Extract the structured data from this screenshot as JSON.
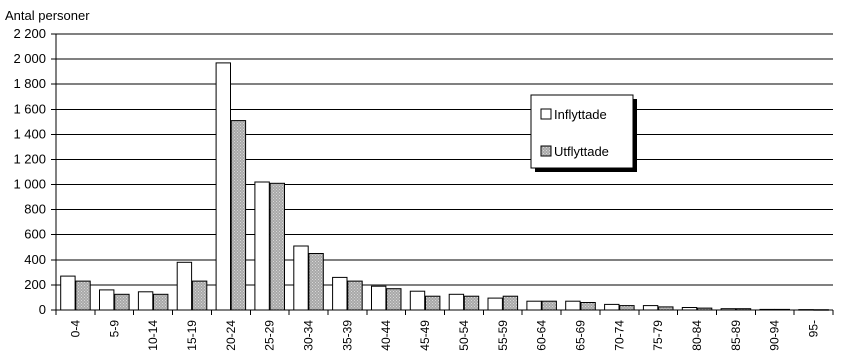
{
  "chart_data": {
    "type": "bar",
    "ylabel": "Antal personer",
    "xlabel": "",
    "title": "",
    "ylim": [
      0,
      2200
    ],
    "yticks": [
      0,
      200,
      400,
      600,
      800,
      1000,
      1200,
      1400,
      1600,
      1800,
      2000,
      2200
    ],
    "ytick_labels": [
      "0",
      "200",
      "400",
      "600",
      "800",
      "1 000",
      "1 200",
      "1 400",
      "1 600",
      "1 800",
      "2 000",
      "2 200"
    ],
    "grid": true,
    "legend_position": "right",
    "categories": [
      "0-4",
      "5-9",
      "10-14",
      "15-19",
      "20-24",
      "25-29",
      "30-34",
      "35-39",
      "40-44",
      "45-49",
      "50-54",
      "55-59",
      "60-64",
      "65-69",
      "70-74",
      "75-79",
      "80-84",
      "85-89",
      "90-94",
      "95-"
    ],
    "series": [
      {
        "name": "Inflyttade",
        "color": "#ffffff",
        "values": [
          270,
          160,
          145,
          380,
          1970,
          1020,
          510,
          260,
          190,
          150,
          125,
          95,
          70,
          70,
          45,
          35,
          20,
          10,
          5,
          3
        ]
      },
      {
        "name": "Utflyttade",
        "color": "#b0b0b0",
        "values": [
          230,
          125,
          125,
          230,
          1510,
          1010,
          450,
          230,
          170,
          110,
          110,
          110,
          70,
          60,
          35,
          25,
          15,
          10,
          5,
          2
        ]
      }
    ]
  }
}
